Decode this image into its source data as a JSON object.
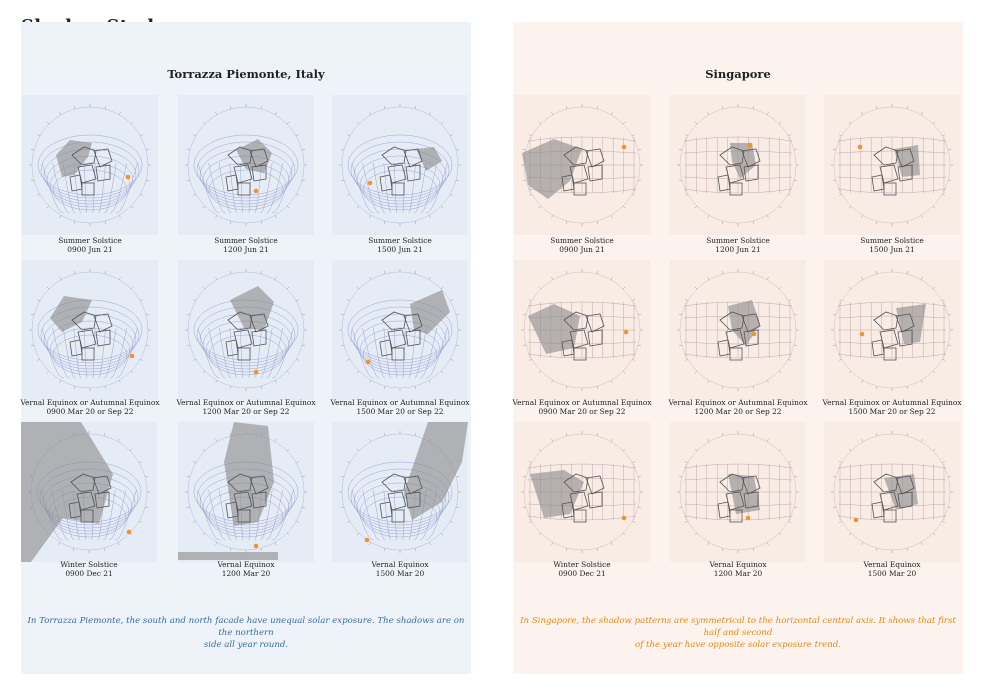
{
  "page_title": "Shadow Study",
  "panels": [
    {
      "title": "Torrazza Piemonte, Italy",
      "caption_lines": [
        "In Torrazza Piemonte, the south and north facade have unequal solar exposure. The shadows are on the northern",
        "side all year round."
      ],
      "cells": [
        {
          "label": "Summer Solstice",
          "time": "0900 Jun 21"
        },
        {
          "label": "Summer Solstice",
          "time": "1200 Jun 21"
        },
        {
          "label": "Summer Solstice",
          "time": "1500 Jun 21"
        },
        {
          "label": "Vernal Equinox or Autumnal Equinox",
          "time": "0900 Mar 20 or Sep 22"
        },
        {
          "label": "Vernal Equinox or Autumnal Equinox",
          "time": "1200 Mar 20 or Sep 22"
        },
        {
          "label": "Vernal Equinox or Autumnal Equinox",
          "time": "1500 Mar 20 or Sep 22"
        },
        {
          "label": "Winter Solstice",
          "time": "0900 Dec 21"
        },
        {
          "label": "Vernal Equinox",
          "time": "1200 Mar 20"
        },
        {
          "label": "Vernal Equinox",
          "time": "1500 Mar 20"
        }
      ]
    },
    {
      "title": "Singapore",
      "caption_lines": [
        "In Singapore, the shadow patterns are symmetrical to the horizontal central axis. It shows that first half and second",
        "of the year have opposite solar exposure trend."
      ],
      "cells": [
        {
          "label": "Summer Solstice",
          "time": "0900 Jun 21"
        },
        {
          "label": "Summer Solstice",
          "time": "1200 Jun 21"
        },
        {
          "label": "Summer Solstice",
          "time": "1500 Jun 21"
        },
        {
          "label": "Vernal Equinox or Autumnal Equinox",
          "time": "0900 Mar 20 or Sep 22"
        },
        {
          "label": "Vernal Equinox or Autumnal Equinox",
          "time": "1200 Mar 20 or Sep 22"
        },
        {
          "label": "Vernal Equinox or Autumnal Equinox",
          "time": "1500 Mar 20 or Sep 22"
        },
        {
          "label": "Winter Solstice",
          "time": "0900 Dec 21"
        },
        {
          "label": "Vernal Equinox",
          "time": "1200 Mar 20"
        },
        {
          "label": "Vernal Equinox",
          "time": "1500 Mar 20"
        }
      ]
    }
  ],
  "colors": {
    "left_panel_bg": "#eef3fa",
    "right_panel_bg": "#fcf3ee",
    "left_caption": "#3a6d9a",
    "right_caption": "#e08a1e",
    "sun_marker": "#f0932b",
    "shadow": "#8a8a8a",
    "sunpath_left": "#8d97c9",
    "sunpath_right": "#b99aa8"
  }
}
